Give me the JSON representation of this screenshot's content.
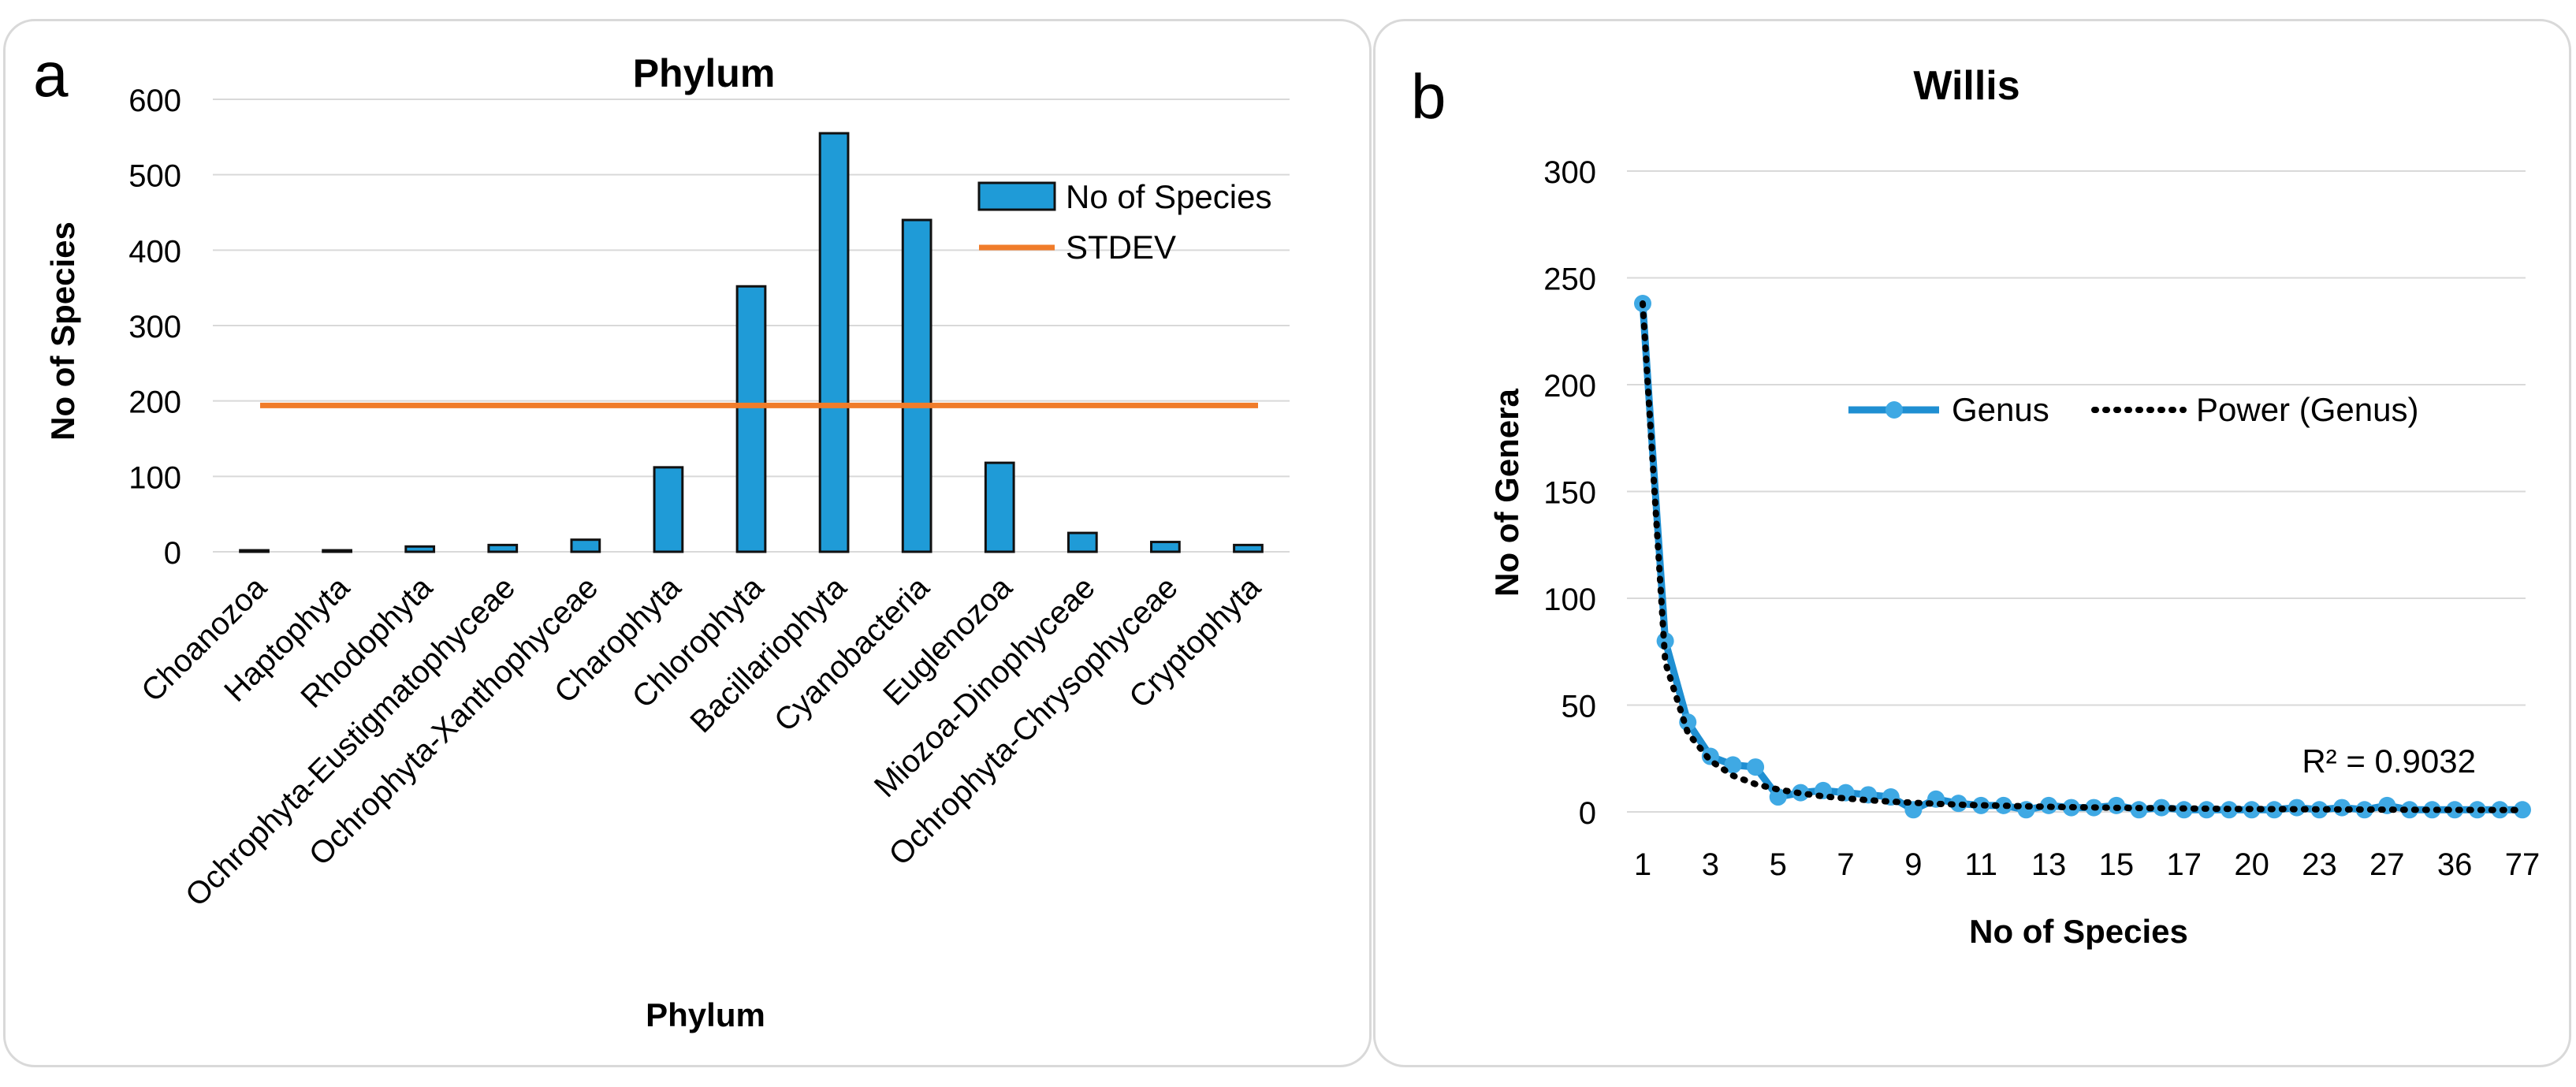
{
  "panel_a": {
    "label": "a",
    "chart_data": {
      "type": "bar",
      "title": "Phylum",
      "xlabel": "Phylum",
      "ylabel": "No of Species",
      "ylim": [
        0,
        600
      ],
      "yticks": [
        0,
        100,
        200,
        300,
        400,
        500,
        600
      ],
      "categories": [
        "Choanozoa",
        "Haptophyta",
        "Rhodophyta",
        "Ochrophyta-Eustigmatophyceae",
        "Ochrophyta-Xanthophyceae",
        "Charophyta",
        "Chlorophyta",
        "Bacillariophyta",
        "Cyanobacteria",
        "Euglenozoa",
        "Miozoa-Dinophyceae",
        "Ochrophyta-Chrysophyceae",
        "Cryptophyta"
      ],
      "series": [
        {
          "name": "No of Species",
          "kind": "bar",
          "color": "#1f9bd7",
          "values": [
            2,
            2,
            7,
            9,
            16,
            112,
            352,
            555,
            440,
            118,
            25,
            13,
            9
          ]
        },
        {
          "name": "STDEV",
          "kind": "line",
          "color": "#f07c2a",
          "value": 194
        }
      ],
      "legend_position": "top-right",
      "grid": true
    }
  },
  "panel_b": {
    "label": "b",
    "chart_data": {
      "type": "line",
      "title": "Willis",
      "xlabel": "No of Species",
      "ylabel": "No of Genera",
      "ylim": [
        0,
        300
      ],
      "yticks": [
        0,
        50,
        100,
        150,
        200,
        250,
        300
      ],
      "x_tick_labels": [
        "1",
        "3",
        "5",
        "7",
        "9",
        "11",
        "13",
        "15",
        "17",
        "20",
        "23",
        "27",
        "36",
        "77"
      ],
      "series": [
        {
          "name": "Genus",
          "kind": "line-marker",
          "color": "#1f8fd2",
          "values": [
            238,
            80,
            42,
            26,
            22,
            21,
            7,
            9,
            10,
            9,
            8,
            7,
            1,
            6,
            4,
            3,
            3,
            1,
            3,
            2,
            2,
            3,
            1,
            2,
            1,
            1,
            1,
            1,
            1,
            2,
            1,
            2,
            1,
            3,
            1,
            1,
            1,
            1,
            1,
            1
          ]
        },
        {
          "name": "Power (Genus)",
          "kind": "trendline",
          "color": "#000000",
          "values": [
            238,
            70,
            37,
            24,
            17,
            13,
            10.5,
            8.7,
            7.3,
            6.3,
            5.5,
            4.8,
            4.3,
            3.8,
            3.4,
            3.1,
            2.9,
            2.6,
            2.4,
            2.2,
            2.1,
            1.9,
            1.8,
            1.7,
            1.6,
            1.5,
            1.4,
            1.35,
            1.3,
            1.25,
            1.2,
            1.15,
            1.1,
            1.05,
            1.0,
            0.97,
            0.94,
            0.91,
            0.88,
            0.85
          ]
        }
      ],
      "annotation": "R² = 0.9032",
      "legend_position": "top-right",
      "grid": true
    }
  }
}
